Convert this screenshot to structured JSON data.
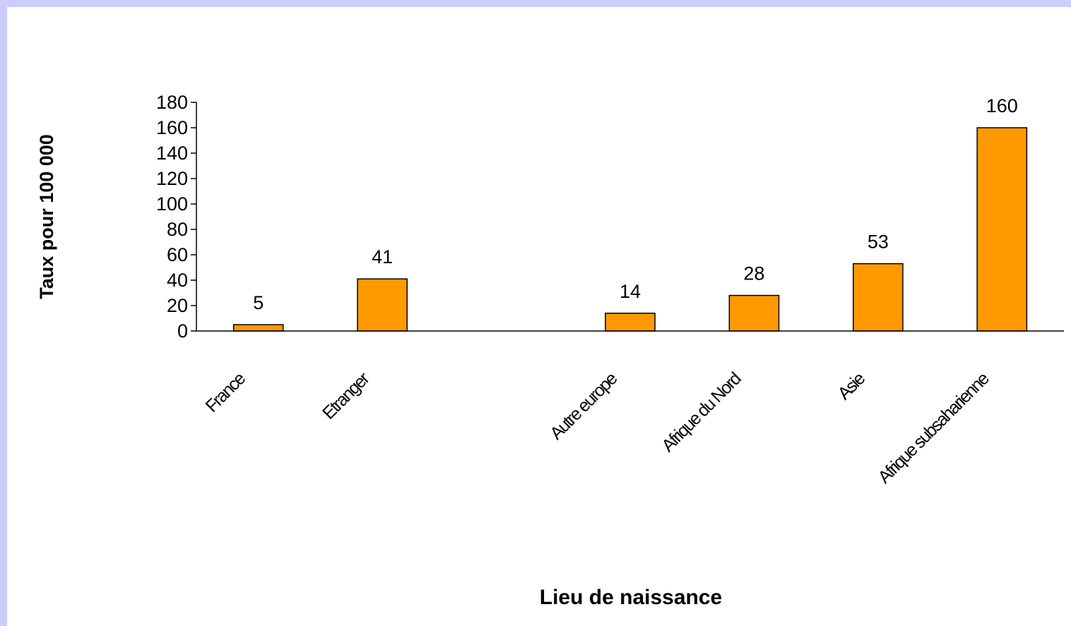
{
  "chart_data": {
    "type": "bar",
    "x_label": "Lieu de naissance",
    "y_label": "Taux pour 100 000",
    "categories": [
      "France",
      "Etranger",
      null,
      "Autre europe",
      "Afrique du Nord",
      "Asie",
      "Afrique subsaharienne"
    ],
    "values": [
      5,
      41,
      null,
      14,
      28,
      53,
      160
    ],
    "color": "#ff9900",
    "ylim": [
      0,
      180
    ],
    "yticks": [
      0,
      20,
      40,
      60,
      80,
      100,
      120,
      140,
      160,
      180
    ],
    "grid": false
  }
}
